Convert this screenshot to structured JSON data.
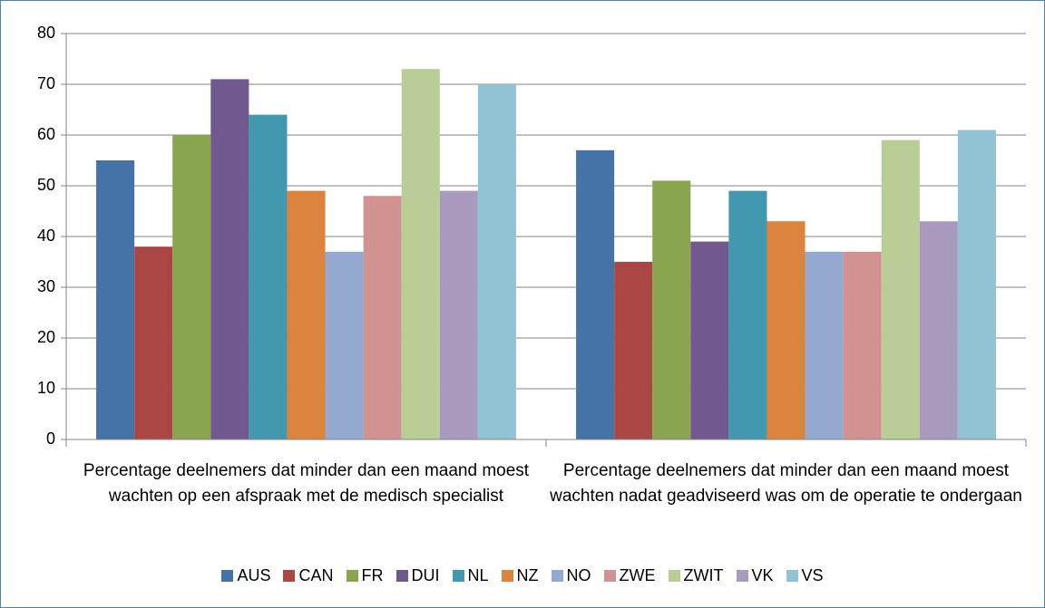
{
  "chart_data": {
    "type": "bar",
    "categories": [
      "Percentage deelnemers dat minder dan een maand moest wachten op een afspraak met de medisch specialist",
      "Percentage deelnemers dat minder dan een maand moest wachten nadat geadviseerd was om de operatie te ondergaan"
    ],
    "series": [
      {
        "name": "AUS",
        "color": "#4572a7",
        "values": [
          55,
          57
        ]
      },
      {
        "name": "CAN",
        "color": "#aa4643",
        "values": [
          38,
          35
        ]
      },
      {
        "name": "FR",
        "color": "#89a54e",
        "values": [
          60,
          51
        ]
      },
      {
        "name": "DUI",
        "color": "#71588f",
        "values": [
          71,
          39
        ]
      },
      {
        "name": "NL",
        "color": "#4198af",
        "values": [
          64,
          49
        ]
      },
      {
        "name": "NZ",
        "color": "#db843d",
        "values": [
          49,
          43
        ]
      },
      {
        "name": "NO",
        "color": "#93a9cf",
        "values": [
          37,
          37
        ]
      },
      {
        "name": "ZWE",
        "color": "#d19392",
        "values": [
          48,
          37
        ]
      },
      {
        "name": "ZWIT",
        "color": "#b9cd96",
        "values": [
          73,
          59
        ]
      },
      {
        "name": "VK",
        "color": "#a99bbd",
        "values": [
          49,
          43
        ]
      },
      {
        "name": "VS",
        "color": "#92c3d4",
        "values": [
          70,
          61
        ]
      }
    ],
    "ylim": [
      0,
      80
    ],
    "yticks": [
      0,
      10,
      20,
      30,
      40,
      50,
      60,
      70,
      80
    ],
    "grid": true,
    "legend": "bottom"
  }
}
